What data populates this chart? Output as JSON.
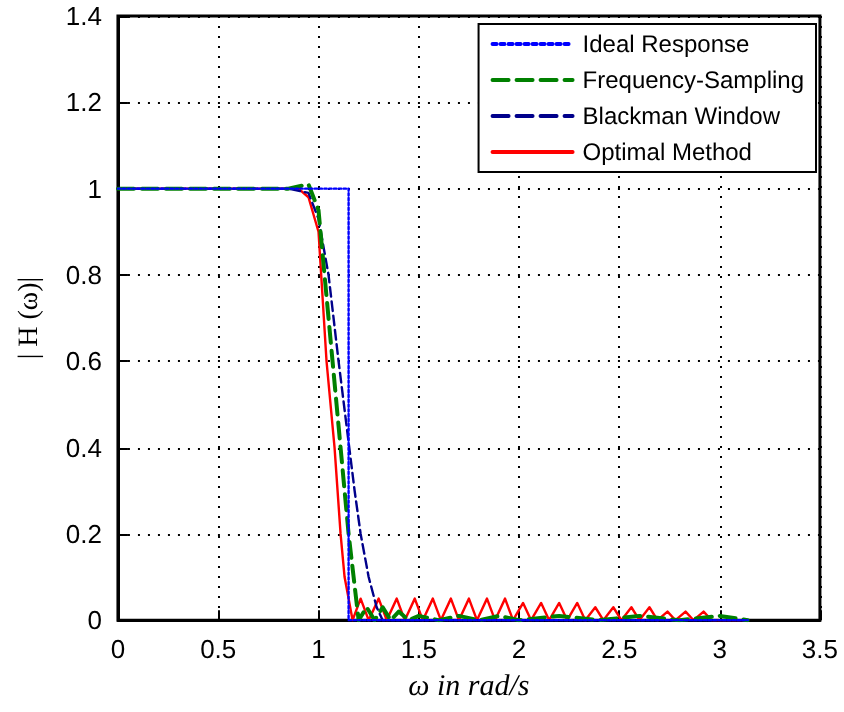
{
  "chart_data": {
    "type": "line",
    "xlabel": "ω in rad/s",
    "ylabel": "| H (ω)|",
    "xlim": [
      0,
      3.5
    ],
    "ylim": [
      0,
      1.4
    ],
    "xticks": [
      0,
      0.5,
      1,
      1.5,
      2,
      2.5,
      3,
      3.5
    ],
    "yticks": [
      0,
      0.2,
      0.4,
      0.6,
      0.8,
      1,
      1.2,
      1.4
    ],
    "grid": true,
    "legend": "top right",
    "marker": "none",
    "series": [
      {
        "name": "Ideal Response",
        "color": "#0000ff",
        "line_style": "dotted",
        "x": [
          0,
          1.15,
          1.15,
          3.14
        ],
        "values": [
          1,
          1,
          0,
          0
        ]
      },
      {
        "name": "Frequency-Sampling",
        "color": "#008000",
        "line_style": "dashed",
        "x": [
          0,
          0.85,
          0.95,
          1.0,
          1.03,
          1.07,
          1.11,
          1.15,
          1.18,
          1.2,
          1.24,
          1.28,
          1.32,
          1.36,
          1.4,
          1.45,
          1.5,
          1.6,
          1.7,
          1.8,
          1.9,
          2.0,
          2.2,
          2.4,
          2.6,
          2.8,
          3.0,
          3.14
        ],
        "values": [
          1,
          1,
          1.01,
          0.95,
          0.8,
          0.6,
          0.4,
          0.2,
          0.08,
          0,
          0.03,
          0,
          0.03,
          0,
          0.02,
          0,
          0.01,
          0,
          0.01,
          0,
          0.01,
          0,
          0.01,
          0,
          0.01,
          0,
          0.01,
          0
        ]
      },
      {
        "name": "Blackman Window",
        "color": "#00008b",
        "line_style": "dashed",
        "x": [
          0,
          0.85,
          0.95,
          1.0,
          1.05,
          1.1,
          1.14,
          1.18,
          1.21,
          1.25,
          1.29,
          1.32,
          1.5,
          2.0,
          2.5,
          3.14
        ],
        "values": [
          1,
          1,
          0.99,
          0.93,
          0.8,
          0.6,
          0.45,
          0.3,
          0.2,
          0.1,
          0.03,
          0,
          0,
          0,
          0,
          0
        ]
      },
      {
        "name": "Optimal Method",
        "color": "#ff0000",
        "line_style": "solid",
        "x": [
          0,
          0.9,
          0.95,
          1.0,
          1.04,
          1.08,
          1.11,
          1.13,
          1.15,
          1.17,
          1.21,
          1.25,
          1.3,
          1.34,
          1.39,
          1.43,
          1.48,
          1.52,
          1.57,
          1.61,
          1.66,
          1.7,
          1.75,
          1.79,
          1.84,
          1.88,
          1.93,
          1.97,
          2.02,
          2.06,
          2.11,
          2.15,
          2.2,
          2.24,
          2.29,
          2.33,
          2.38,
          2.42,
          2.47,
          2.51,
          2.56,
          2.6,
          2.65,
          2.69,
          2.74,
          2.78,
          2.83,
          2.87,
          2.92,
          2.96,
          3.14
        ],
        "values": [
          1,
          1,
          0.98,
          0.9,
          0.6,
          0.4,
          0.2,
          0.1,
          0.05,
          0,
          0.05,
          0,
          0.05,
          0,
          0.05,
          0,
          0.05,
          0,
          0.05,
          0,
          0.05,
          0,
          0.05,
          0,
          0.05,
          0,
          0.05,
          0,
          0.04,
          0,
          0.04,
          0,
          0.04,
          0,
          0.04,
          0,
          0.03,
          0,
          0.03,
          0,
          0.03,
          0,
          0.03,
          0,
          0.02,
          0,
          0.02,
          0,
          0.02,
          0,
          0
        ]
      }
    ]
  }
}
